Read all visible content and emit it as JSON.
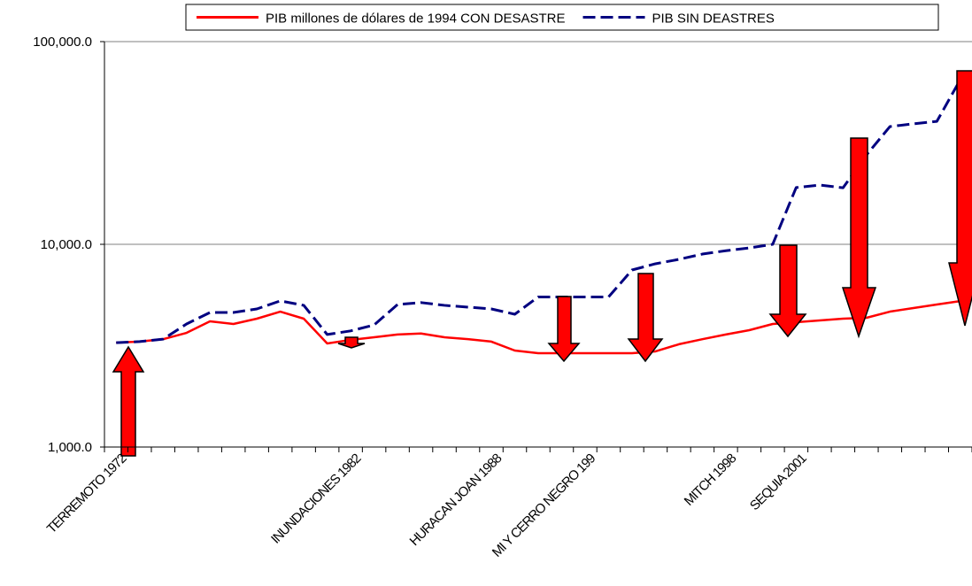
{
  "chart_data": {
    "type": "line",
    "categories": [
      "TERREMOTO 1972",
      null,
      null,
      null,
      null,
      null,
      null,
      null,
      null,
      null,
      "INUNDACIONES 1982",
      null,
      null,
      null,
      null,
      null,
      "HURACAN JOAN 1988",
      null,
      null,
      null,
      "MI Y CERRO NEGRO 199",
      null,
      null,
      null,
      null,
      null,
      "MITCH 1998",
      null,
      null,
      "SEQUIA 2001",
      null,
      null,
      null,
      null,
      null,
      null,
      null
    ],
    "series": [
      {
        "name": "PIB millones de dólares de 1994 CON DESASTRE",
        "color": "#ff0000",
        "dash": false,
        "values": [
          3273,
          3311,
          3404,
          3657,
          4169,
          4046,
          4297,
          4656,
          4297,
          3243,
          3377,
          3478,
          3589,
          3630,
          3478,
          3404,
          3311,
          2992,
          2903,
          2903,
          2903,
          2903,
          2903,
          2963,
          3214,
          3404,
          3589,
          3770,
          4046,
          4127,
          4212,
          4297,
          4340,
          4656,
          4849,
          5047,
          5250
        ]
      },
      {
        "name": "PIB SIN DEASTRES",
        "color": "#000080",
        "dash": true,
        "values": [
          3273,
          3311,
          3404,
          4046,
          4610,
          4610,
          4800,
          5260,
          5000,
          3589,
          3740,
          4000,
          5047,
          5160,
          5000,
          4900,
          4800,
          4518,
          5500,
          5500,
          5500,
          5500,
          7470,
          8017,
          8430,
          8950,
          9300,
          9600,
          10000,
          19050,
          19600,
          19000,
          27600,
          38100,
          39300,
          40400,
          64900
        ]
      }
    ],
    "log_y": true,
    "ylim": [
      1000,
      100000
    ],
    "yticks": [
      {
        "value": 1000,
        "label": "1,000.0"
      },
      {
        "value": 10000,
        "label": "10,000.0"
      },
      {
        "value": 100000,
        "label": "100,000.0"
      }
    ],
    "grid": true,
    "legend": "top"
  }
}
